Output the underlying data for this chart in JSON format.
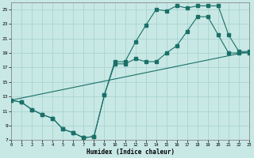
{
  "xlabel": "Humidex (Indice chaleur)",
  "bg_color": "#c8e8e5",
  "grid_color": "#a8d4d0",
  "line_color": "#1a7068",
  "xlim": [
    0,
    23
  ],
  "ylim": [
    7,
    26
  ],
  "ytick_vals": [
    7,
    9,
    11,
    13,
    15,
    17,
    19,
    21,
    23,
    25
  ],
  "xtick_vals": [
    0,
    1,
    2,
    3,
    4,
    5,
    6,
    7,
    8,
    9,
    10,
    11,
    12,
    13,
    14,
    15,
    16,
    17,
    18,
    19,
    20,
    21,
    22,
    23
  ],
  "curve1_x": [
    0,
    1,
    2,
    3,
    4,
    5,
    6,
    7,
    8,
    9,
    10,
    11,
    12,
    13,
    14,
    15,
    16,
    17,
    18,
    19,
    20,
    21,
    22,
    23
  ],
  "curve1_y": [
    12.5,
    12.2,
    11.2,
    10.5,
    10.0,
    8.5,
    8.0,
    7.3,
    7.5,
    13.2,
    17.8,
    17.8,
    20.5,
    22.8,
    25.0,
    24.8,
    25.5,
    25.2,
    25.5,
    25.5,
    25.5,
    21.5,
    19.2,
    19.2
  ],
  "curve2_x": [
    0,
    1,
    2,
    3,
    4,
    5,
    6,
    7,
    8,
    9,
    10,
    11,
    12,
    13,
    14,
    15,
    16,
    17,
    18,
    19,
    20,
    21,
    22,
    23
  ],
  "curve2_y": [
    12.5,
    12.2,
    11.2,
    10.5,
    10.0,
    8.5,
    8.0,
    7.3,
    7.5,
    13.2,
    17.5,
    17.5,
    18.2,
    17.8,
    17.8,
    19.0,
    20.0,
    22.0,
    24.0,
    24.0,
    21.5,
    19.0,
    19.0,
    19.0
  ],
  "line3_x": [
    0,
    23
  ],
  "line3_y": [
    12.5,
    19.2
  ]
}
